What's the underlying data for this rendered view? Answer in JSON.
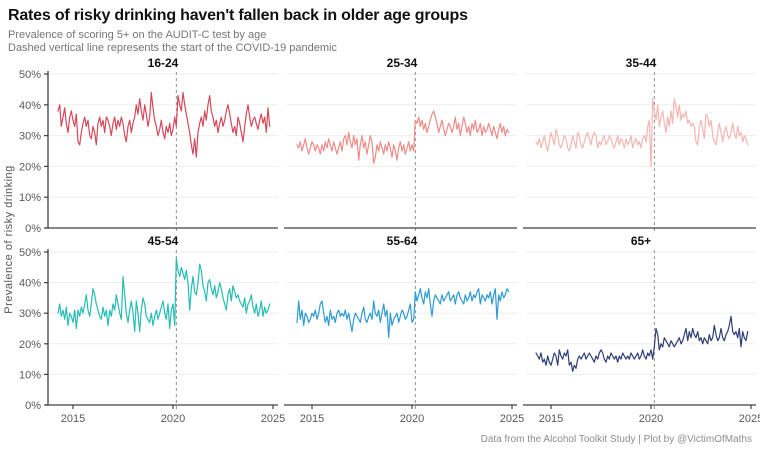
{
  "header": {
    "title": "Rates of risky drinking haven't fallen back in older age groups",
    "subtitle1": "Prevalence of scoring 5+ on the AUDIT-C test by age",
    "subtitle2": "Dashed vertical line represents the start of the COVID-19 pandemic"
  },
  "footer": {
    "caption": "Data from the Alcohol Toolkit Study | Plot by @VictimOfMaths"
  },
  "chart_data": {
    "type": "line",
    "title": "Rates of risky drinking haven't fallen back in older age groups",
    "ylabel": "Prevalence of risky drinking",
    "xlabel": "",
    "ylim": [
      0,
      50
    ],
    "y_ticks_percent": [
      0,
      10,
      20,
      30,
      40,
      50
    ],
    "x_ticks": [
      2015,
      2020,
      2025
    ],
    "x_range": [
      2013.75,
      2025.25
    ],
    "covid_line_year": 2020.17,
    "x_start_year": 2014.25,
    "x_step_years": 0.08333,
    "grid": "horizontal-only",
    "legend": "none (facet titles above each panel)",
    "style": {
      "gridline_color": "#ededed",
      "axis_color": "#404040",
      "dashed_line_color": "#999999",
      "tick_label_color": "#595959",
      "facet_title_color": "#111111"
    },
    "facets": [
      {
        "name": "16-24",
        "color": "#d5485a",
        "values": [
          38,
          40,
          33,
          36,
          39,
          34,
          31,
          36,
          38,
          35,
          33,
          37,
          28,
          27,
          31,
          34,
          36,
          33,
          35,
          30,
          29,
          33,
          31,
          27,
          34,
          36,
          33,
          35,
          31,
          36,
          35,
          33,
          30,
          34,
          36,
          32,
          35,
          33,
          36,
          34,
          30,
          28,
          33,
          35,
          31,
          34,
          36,
          40,
          37,
          42,
          38,
          35,
          40,
          37,
          33,
          36,
          44,
          39,
          35,
          33,
          30,
          32,
          35,
          31,
          29,
          33,
          31,
          34,
          30,
          32,
          36,
          33,
          43,
          40,
          38,
          44,
          40,
          37,
          34,
          31,
          27,
          24,
          29,
          23,
          31,
          34,
          36,
          33,
          38,
          35,
          40,
          43,
          38,
          36,
          33,
          35,
          31,
          34,
          36,
          33,
          35,
          38,
          40,
          37,
          34,
          31,
          33,
          30,
          36,
          34,
          31,
          28,
          33,
          37,
          40,
          36,
          33,
          35,
          36,
          34,
          32,
          35,
          37,
          34,
          36,
          31,
          39,
          33
        ]
      },
      {
        "name": "25-34",
        "color": "#ee8b87",
        "values": [
          27,
          26,
          28,
          25,
          27,
          29,
          26,
          24,
          26,
          28,
          27,
          25,
          27,
          26,
          24,
          27,
          25,
          28,
          26,
          29,
          27,
          25,
          28,
          26,
          24,
          26,
          28,
          25,
          29,
          30,
          27,
          31,
          28,
          26,
          30,
          27,
          29,
          22,
          27,
          30,
          26,
          28,
          24,
          27,
          30,
          28,
          21,
          23,
          27,
          25,
          28,
          26,
          24,
          27,
          25,
          28,
          26,
          23,
          27,
          25,
          22,
          26,
          28,
          25,
          27,
          24,
          26,
          28,
          25,
          27,
          25,
          35,
          34,
          36,
          33,
          35,
          32,
          34,
          31,
          33,
          35,
          37,
          38,
          36,
          34,
          31,
          33,
          35,
          32,
          30,
          32,
          34,
          33,
          31,
          33,
          36,
          32,
          34,
          30,
          33,
          36,
          34,
          31,
          33,
          30,
          34,
          32,
          35,
          31,
          32,
          34,
          30,
          33,
          31,
          32,
          34,
          32,
          30,
          33,
          31,
          29,
          32,
          34,
          31,
          33,
          30,
          32,
          31
        ]
      },
      {
        "name": "35-44",
        "color": "#f5b5b1",
        "values": [
          28,
          27,
          29,
          26,
          28,
          30,
          27,
          25,
          28,
          31,
          29,
          27,
          32,
          30,
          27,
          26,
          28,
          30,
          29,
          26,
          25,
          27,
          30,
          28,
          26,
          31,
          30,
          27,
          26,
          28,
          30,
          31,
          29,
          27,
          30,
          31,
          30,
          26,
          28,
          27,
          29,
          30,
          27,
          28,
          30,
          29,
          27,
          26,
          28,
          30,
          27,
          29,
          28,
          26,
          29,
          27,
          28,
          30,
          26,
          28,
          29,
          27,
          28,
          26,
          29,
          30,
          28,
          33,
          35,
          20,
          42,
          38,
          35,
          40,
          33,
          36,
          38,
          34,
          31,
          36,
          33,
          38,
          34,
          42,
          39,
          36,
          40,
          35,
          37,
          36,
          38,
          34,
          35,
          33,
          34,
          33,
          28,
          27,
          33,
          35,
          32,
          29,
          37,
          36,
          33,
          35,
          30,
          28,
          27,
          31,
          34,
          31,
          28,
          31,
          33,
          30,
          29,
          31,
          34,
          31,
          29,
          33,
          30,
          31,
          28,
          30,
          29,
          27
        ]
      },
      {
        "name": "45-54",
        "color": "#26bdb3",
        "values": [
          30,
          33,
          29,
          31,
          28,
          32,
          26,
          30,
          29,
          27,
          31,
          25,
          31,
          29,
          32,
          30,
          33,
          36,
          31,
          29,
          33,
          38,
          36,
          33,
          31,
          29,
          28,
          32,
          29,
          31,
          26,
          31,
          29,
          33,
          31,
          36,
          33,
          30,
          28,
          42,
          36,
          30,
          27,
          31,
          34,
          30,
          24,
          34,
          30,
          24,
          31,
          35,
          33,
          29,
          28,
          27,
          30,
          26,
          29,
          31,
          28,
          30,
          32,
          34,
          30,
          28,
          33,
          25,
          31,
          33,
          26,
          48,
          44,
          42,
          45,
          43,
          41,
          44,
          40,
          31,
          38,
          42,
          37,
          36,
          40,
          46,
          44,
          39,
          37,
          34,
          40,
          41,
          38,
          36,
          39,
          35,
          37,
          40,
          38,
          35,
          33,
          31,
          36,
          38,
          34,
          39,
          37,
          35,
          36,
          34,
          33,
          32,
          35,
          30,
          33,
          34,
          36,
          32,
          30,
          33,
          29,
          31,
          34,
          29,
          32,
          30,
          31,
          33
        ]
      },
      {
        "name": "55-64",
        "color": "#2e9bd3",
        "values": [
          27,
          34,
          28,
          31,
          26,
          30,
          29,
          27,
          28,
          30,
          29,
          31,
          28,
          30,
          33,
          34,
          30,
          27,
          29,
          26,
          31,
          28,
          29,
          27,
          30,
          31,
          29,
          30,
          29,
          31,
          28,
          30,
          27,
          24,
          28,
          30,
          29,
          28,
          27,
          30,
          32,
          28,
          27,
          29,
          30,
          28,
          34,
          30,
          29,
          31,
          27,
          30,
          33,
          29,
          31,
          22,
          30,
          26,
          28,
          29,
          30,
          27,
          29,
          31,
          30,
          28,
          29,
          31,
          33,
          27,
          28,
          37,
          34,
          36,
          38,
          35,
          33,
          37,
          35,
          38,
          33,
          29,
          34,
          36,
          35,
          34,
          33,
          36,
          34,
          35,
          36,
          37,
          34,
          35,
          36,
          33,
          36,
          37,
          35,
          34,
          33,
          36,
          34,
          35,
          37,
          34,
          36,
          35,
          37,
          38,
          33,
          36,
          35,
          34,
          36,
          35,
          37,
          33,
          36,
          38,
          28,
          36,
          34,
          37,
          35,
          36,
          38,
          37
        ]
      },
      {
        "name": "65+",
        "color": "#2e3d77",
        "values": [
          17,
          16,
          15,
          17,
          14,
          15,
          13,
          16,
          14,
          13,
          15,
          17,
          16,
          13,
          18,
          16,
          15,
          17,
          16,
          18,
          13,
          14,
          11,
          13,
          12,
          15,
          16,
          15,
          16,
          17,
          15,
          16,
          17,
          16,
          15,
          14,
          16,
          15,
          17,
          18,
          17,
          15,
          14,
          16,
          15,
          17,
          16,
          15,
          16,
          14,
          16,
          15,
          17,
          16,
          15,
          16,
          15,
          17,
          16,
          15,
          16,
          17,
          15,
          16,
          18,
          16,
          15,
          17,
          16,
          18,
          15,
          19,
          25,
          23,
          18,
          20,
          19,
          22,
          21,
          20,
          19,
          21,
          20,
          19,
          20,
          21,
          22,
          20,
          21,
          23,
          25,
          21,
          24,
          22,
          25,
          23,
          22,
          24,
          21,
          22,
          20,
          22,
          21,
          20,
          23,
          21,
          22,
          26,
          23,
          21,
          22,
          25,
          22,
          21,
          23,
          24,
          26,
          29,
          24,
          23,
          24,
          22,
          25,
          19,
          24,
          22,
          21,
          24
        ]
      }
    ]
  }
}
